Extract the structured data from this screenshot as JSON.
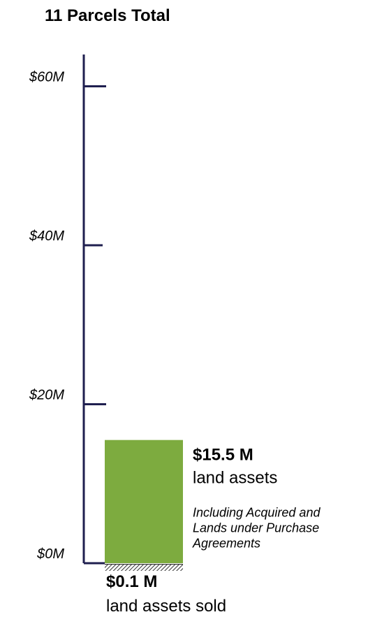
{
  "chart_data": {
    "type": "bar",
    "title": "11 Parcels Total",
    "ylim": [
      0,
      64
    ],
    "yticks": [
      {
        "value": 0,
        "label": "$0M"
      },
      {
        "value": 20,
        "label": "$20M"
      },
      {
        "value": 40,
        "label": "$40M"
      },
      {
        "value": 60,
        "label": "$60M"
      }
    ],
    "series": [
      {
        "name": "land assets",
        "color": "#7dab3f",
        "values": [
          15.5
        ],
        "value_labels": [
          "$15.5 M"
        ],
        "note": [
          "Including Acquired and",
          "Lands under Purchase",
          "Agreements"
        ]
      },
      {
        "name": "land assets sold",
        "color": "#333333",
        "pattern": "hatch",
        "values": [
          0.1
        ],
        "value_labels": [
          "$0.1 M"
        ]
      }
    ]
  }
}
